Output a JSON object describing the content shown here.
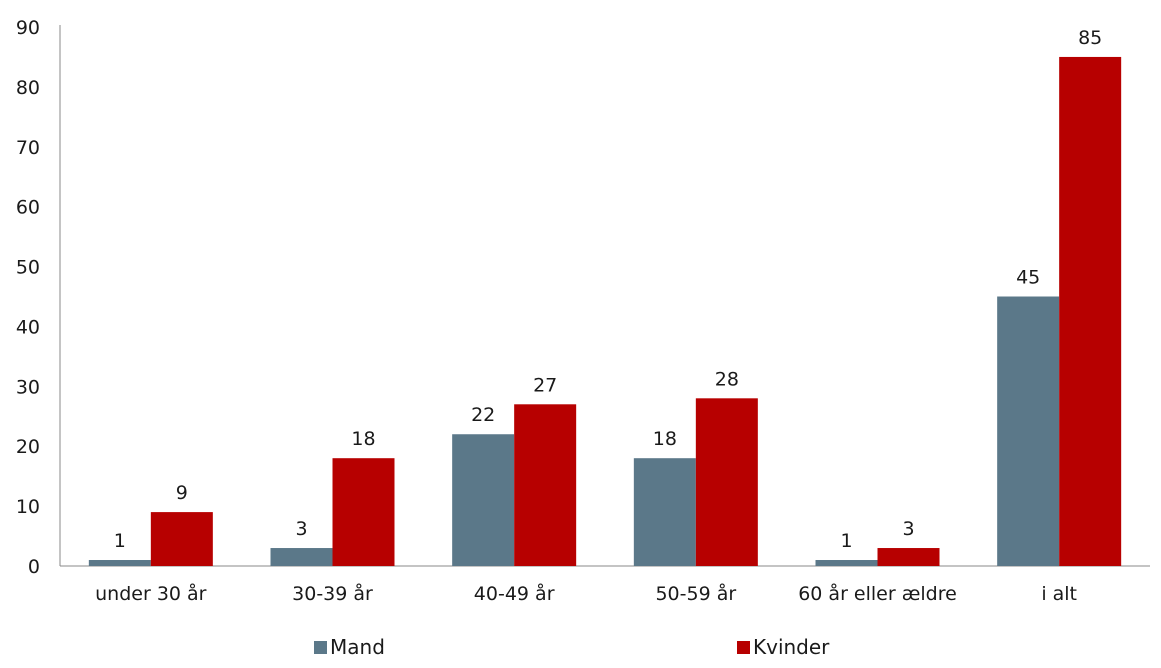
{
  "chart_data": {
    "type": "bar",
    "categories": [
      "under 30 år",
      "30-39 år",
      "40-49 år",
      "50-59 år",
      "60 år eller ældre",
      "i alt"
    ],
    "series": [
      {
        "name": "Mand",
        "values": [
          1,
          3,
          22,
          18,
          1,
          45
        ],
        "color": "#5b7889"
      },
      {
        "name": "Kvinder",
        "values": [
          9,
          18,
          27,
          28,
          3,
          85
        ],
        "color": "#b70000"
      }
    ],
    "title": "",
    "xlabel": "",
    "ylabel": "",
    "ylim": [
      0,
      90
    ],
    "yticks": [
      0,
      10,
      20,
      30,
      40,
      50,
      60,
      70,
      80,
      90
    ],
    "grid": false,
    "legend_position": "bottom",
    "data_labels": true
  }
}
